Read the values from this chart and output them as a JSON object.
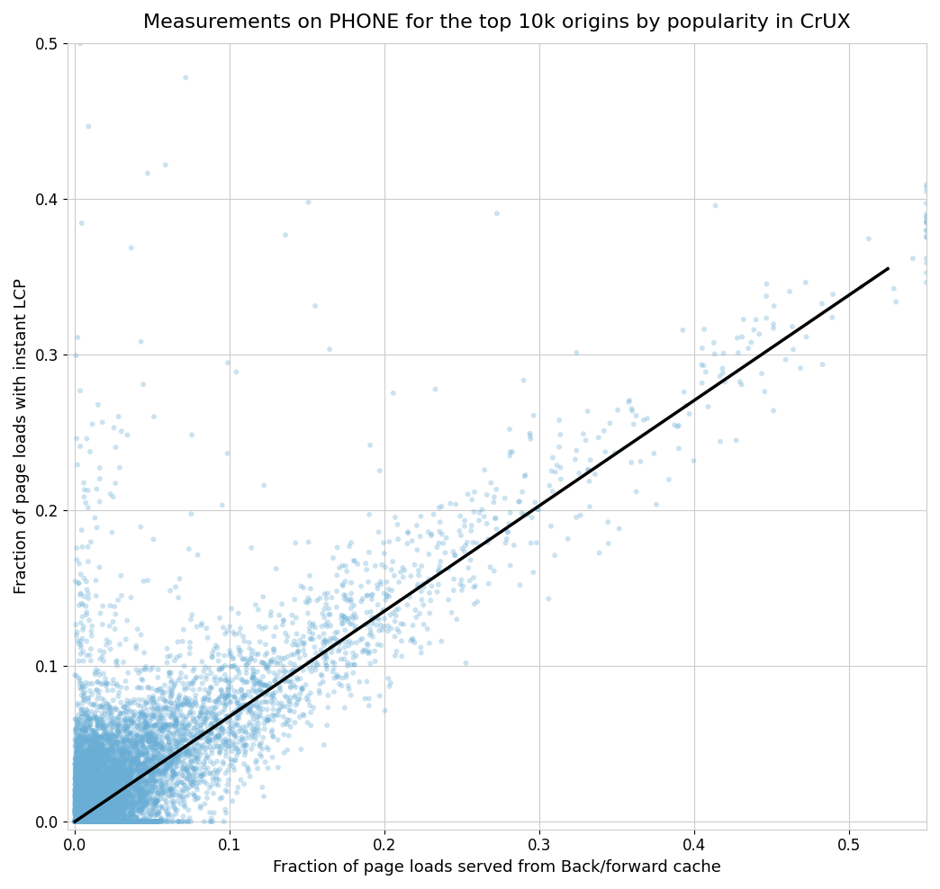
{
  "title": "Measurements on PHONE for the top 10k origins by popularity in CrUX",
  "xlabel": "Fraction of page loads served from Back/forward cache",
  "ylabel": "Fraction of page loads with instant LCP",
  "xlim": [
    -0.005,
    0.55
  ],
  "ylim": [
    -0.005,
    0.5
  ],
  "xticks": [
    0.0,
    0.1,
    0.2,
    0.3,
    0.4,
    0.5
  ],
  "yticks": [
    0.0,
    0.1,
    0.2,
    0.3,
    0.4,
    0.5
  ],
  "scatter_color": "#6aaed6",
  "scatter_alpha": 0.35,
  "scatter_size": 18,
  "line_color": "black",
  "line_x": [
    0.0,
    0.525
  ],
  "line_y": [
    0.0,
    0.355
  ],
  "n_points": 10000,
  "seed": 42,
  "title_fontsize": 16,
  "label_fontsize": 13,
  "tick_fontsize": 12,
  "background_color": "#ffffff",
  "grid_color": "#cccccc"
}
